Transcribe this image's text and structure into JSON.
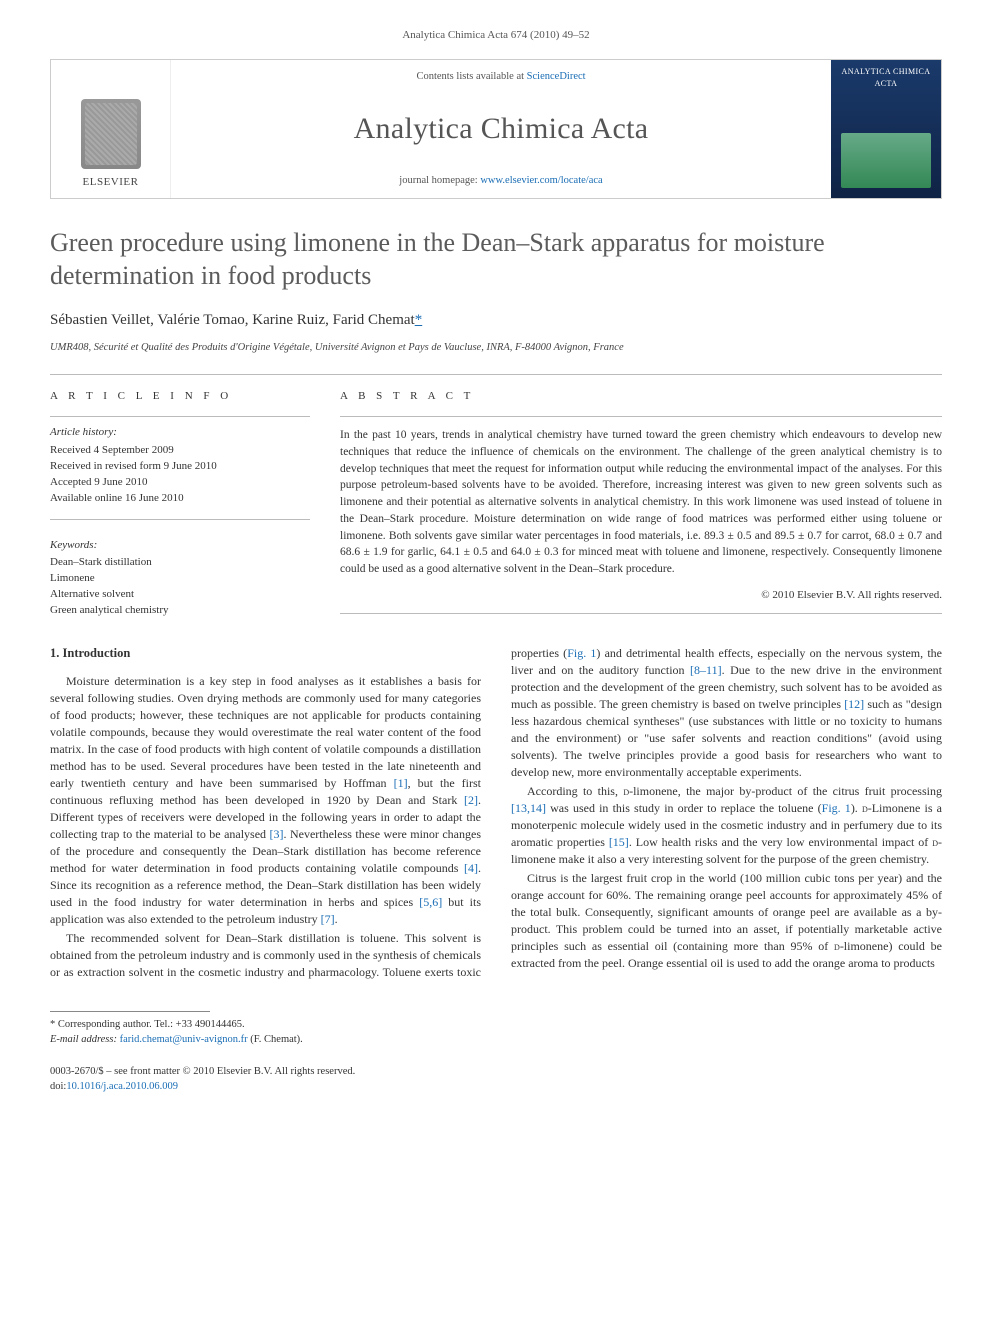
{
  "colors": {
    "link": "#1a6db5",
    "text": "#333333",
    "muted": "#555555",
    "rule": "#bbbbbb"
  },
  "header": {
    "running": "Analytica Chimica Acta 674 (2010) 49–52"
  },
  "masthead": {
    "publisher": "ELSEVIER",
    "contents_prefix": "Contents lists available at ",
    "contents_link": "ScienceDirect",
    "journal": "Analytica Chimica Acta",
    "homepage_prefix": "journal homepage: ",
    "homepage_url": "www.elsevier.com/locate/aca",
    "cover_label": "ANALYTICA CHIMICA ACTA"
  },
  "article": {
    "title": "Green procedure using limonene in the Dean–Stark apparatus for moisture determination in food products",
    "authors_line": "Sébastien Veillet, Valérie Tomao, Karine Ruiz, Farid Chemat",
    "corr_mark": "*",
    "affiliation": "UMR408, Sécurité et Qualité des Produits d'Origine Végétale, Université Avignon et Pays de Vaucluse, INRA, F-84000 Avignon, France"
  },
  "info": {
    "heading": "a r t i c l e   i n f o",
    "history_label": "Article history:",
    "history": [
      "Received 4 September 2009",
      "Received in revised form 9 June 2010",
      "Accepted 9 June 2010",
      "Available online 16 June 2010"
    ],
    "keywords_label": "Keywords:",
    "keywords": [
      "Dean–Stark distillation",
      "Limonene",
      "Alternative solvent",
      "Green analytical chemistry"
    ]
  },
  "abstract": {
    "heading": "a b s t r a c t",
    "body": "In the past 10 years, trends in analytical chemistry have turned toward the green chemistry which endeavours to develop new techniques that reduce the influence of chemicals on the environment. The challenge of the green analytical chemistry is to develop techniques that meet the request for information output while reducing the environmental impact of the analyses. For this purpose petroleum-based solvents have to be avoided. Therefore, increasing interest was given to new green solvents such as limonene and their potential as alternative solvents in analytical chemistry. In this work limonene was used instead of toluene in the Dean–Stark procedure. Moisture determination on wide range of food matrices was performed either using toluene or limonene. Both solvents gave similar water percentages in food materials, i.e. 89.3 ± 0.5 and 89.5 ± 0.7 for carrot, 68.0 ± 0.7 and 68.6 ± 1.9 for garlic, 64.1 ± 0.5 and 64.0 ± 0.3 for minced meat with toluene and limonene, respectively. Consequently limonene could be used as a good alternative solvent in the Dean–Stark procedure.",
    "copyright": "© 2010 Elsevier B.V. All rights reserved."
  },
  "body": {
    "section1_heading": "1.  Introduction",
    "p1a": "Moisture determination is a key step in food analyses as it establishes a basis for several following studies. Oven drying methods are commonly used for many categories of food products; however, these techniques are not applicable for products containing volatile compounds, because they would overestimate the real water content of the food matrix. In the case of food products with high content of volatile compounds a distillation method has to be used. Several procedures have been tested in the late nineteenth and early twentieth century and have been summarised by Hoffman ",
    "r1": "[1]",
    "p1b": ", but the first continuous refluxing method has been developed in 1920 by Dean and Stark ",
    "r2": "[2]",
    "p1c": ". Different types of receivers were developed in the following years in order to adapt the collecting trap to the material to be analysed ",
    "r3": "[3]",
    "p1d": ". Nevertheless these were minor changes of the procedure and consequently the Dean–Stark distillation has become reference method for water determination in food products containing volatile compounds ",
    "r4": "[4]",
    "p1e": ". Since its recognition as a reference method, the Dean–Stark distillation has been widely used in the food industry for water determination in herbs and spices ",
    "r56": "[5,6]",
    "p1f": " but its application was also extended to the petroleum industry ",
    "r7": "[7]",
    "p1g": ".",
    "p2a": "The recommended solvent for Dean–Stark distillation is toluene. This solvent is obtained from the petroleum industry and is commonly used in the synthesis of chemicals or as extraction solvent in the cosmetic industry and pharmacology. Toluene exerts toxic properties (",
    "fig1": "Fig. 1",
    "p2b": ") and detrimental health effects, especially on the nervous system, the liver and on the auditory function ",
    "r8_11": "[8–11]",
    "p2c": ". Due to the new drive in the environment protection and the development of the green chemistry, such solvent has to be avoided as much as possible. The green chemistry is based on twelve principles ",
    "r12": "[12]",
    "p2d": " such as \"design less hazardous chemical syntheses\" (use substances with little or no toxicity to humans and the environment) or \"use safer solvents and reaction conditions\" (avoid using solvents). The twelve principles provide a good basis for researchers who want to develop new, more environmentally acceptable experiments.",
    "p3a": "According to this, ",
    "dlim": "d",
    "p3a2": "-limonene, the major by-product of the citrus fruit processing ",
    "r13_14": "[13,14]",
    "p3b": " was used in this study in order to replace the toluene (",
    "p3c": "). ",
    "p3c2": "-Limonene is a monoterpenic molecule widely used in the cosmetic industry and in perfumery due to its aromatic properties ",
    "r15": "[15]",
    "p3d": ". Low health risks and the very low environmental impact of ",
    "p3e": "-limonene make it also a very interesting solvent for the purpose of the green chemistry.",
    "p4": "Citrus is the largest fruit crop in the world (100 million cubic tons per year) and the orange account for 60%. The remaining orange peel accounts for approximately 45% of the total bulk. Consequently, significant amounts of orange peel are available as a by-product. This problem could be turned into an asset, if potentially marketable active principles such as essential oil (containing more than 95% of ",
    "p4b": "-limonene) could be extracted from the peel. Orange essential oil is used to add the orange aroma to products"
  },
  "footnotes": {
    "corr": "* Corresponding author. Tel.: +33 490144465.",
    "email_label": "E-mail address: ",
    "email": "farid.chemat@univ-avignon.fr",
    "email_suffix": " (F. Chemat)."
  },
  "footer": {
    "line1": "0003-2670/$ – see front matter © 2010 Elsevier B.V. All rights reserved.",
    "doi_label": "doi:",
    "doi": "10.1016/j.aca.2010.06.009"
  }
}
